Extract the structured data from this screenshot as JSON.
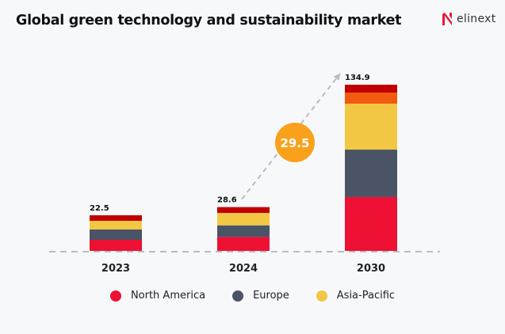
{
  "title": "Global green technology and sustainability market",
  "logo": {
    "text": "elinext",
    "color": "#E8173A"
  },
  "chart_data": {
    "type": "bar",
    "stacked": true,
    "categories": [
      "2023",
      "2024",
      "2030"
    ],
    "totals": [
      "22.5",
      "28.6",
      "134.9"
    ],
    "series": [
      {
        "name": "North America",
        "color": "#EE1133",
        "values": [
          7.0,
          9.1,
          43.7
        ]
      },
      {
        "name": "Europe",
        "color": "#4A5466",
        "values": [
          6.5,
          7.6,
          38.5
        ]
      },
      {
        "name": "Asia-Pacific",
        "color": "#F2C744",
        "values": [
          5.5,
          8.1,
          37.3
        ]
      },
      {
        "color": "#F25A0F",
        "values": [
          0,
          0,
          9.0
        ]
      },
      {
        "color": "#C00000",
        "values": [
          3.5,
          3.8,
          6.4
        ]
      }
    ],
    "annotation": {
      "label": "29.5",
      "color": "#F9A11B",
      "from": "2024",
      "to": "2030"
    },
    "grid": false,
    "legend_placement": "bottom"
  }
}
